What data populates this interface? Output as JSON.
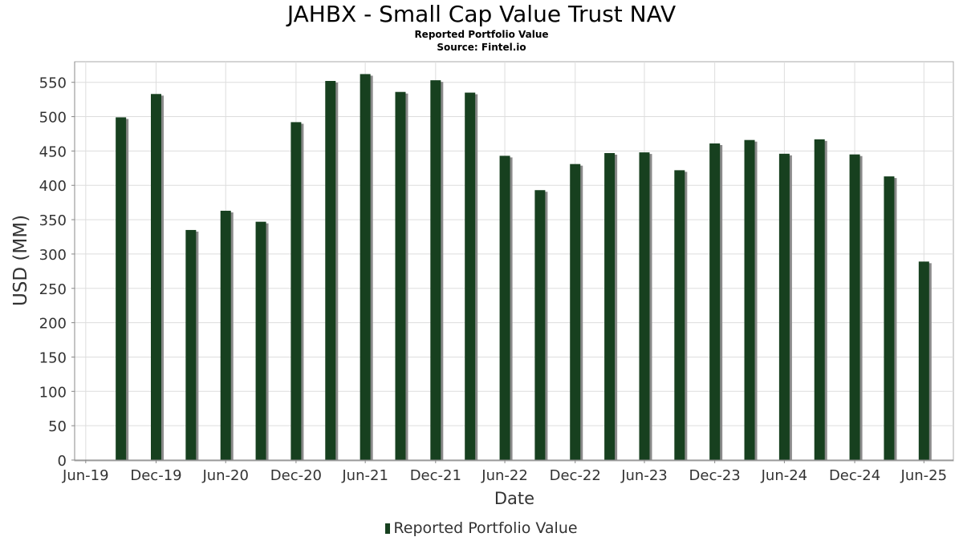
{
  "header": {
    "title": "JAHBX - Small Cap Value Trust NAV",
    "subtitle": "Reported Portfolio Value",
    "source": "Source: Fintel.io"
  },
  "legend": {
    "label": "Reported Portfolio Value"
  },
  "colors": {
    "bar": "#17401f",
    "shadow": "#8a8a8a",
    "grid": "#dddddd",
    "axis": "#888888"
  },
  "chart_data": {
    "type": "bar",
    "title": "JAHBX - Small Cap Value Trust NAV",
    "subtitle": "Reported Portfolio Value",
    "xlabel": "Date",
    "ylabel": "USD (MM)",
    "ylim": [
      0,
      580
    ],
    "yticks": [
      0,
      50,
      100,
      150,
      200,
      250,
      300,
      350,
      400,
      450,
      500,
      550
    ],
    "xlim": [
      "2019-06-01",
      "2025-09-15"
    ],
    "xticks": [
      {
        "label": "Jun-19",
        "date": "2019-06-30"
      },
      {
        "label": "Dec-19",
        "date": "2019-12-31"
      },
      {
        "label": "Jun-20",
        "date": "2020-06-30"
      },
      {
        "label": "Dec-20",
        "date": "2020-12-31"
      },
      {
        "label": "Jun-21",
        "date": "2021-06-30"
      },
      {
        "label": "Dec-21",
        "date": "2021-12-31"
      },
      {
        "label": "Jun-22",
        "date": "2022-06-30"
      },
      {
        "label": "Dec-22",
        "date": "2022-12-31"
      },
      {
        "label": "Jun-23",
        "date": "2023-06-30"
      },
      {
        "label": "Dec-23",
        "date": "2023-12-31"
      },
      {
        "label": "Jun-24",
        "date": "2024-06-30"
      },
      {
        "label": "Dec-24",
        "date": "2024-12-31"
      },
      {
        "label": "Jun-25",
        "date": "2025-06-30"
      }
    ],
    "grid": true,
    "legend_position": "bottom-center",
    "series": [
      {
        "name": "Reported Portfolio Value",
        "points": [
          {
            "date": "2019-09-30",
            "value": 499
          },
          {
            "date": "2019-12-31",
            "value": 533
          },
          {
            "date": "2020-03-31",
            "value": 335
          },
          {
            "date": "2020-06-30",
            "value": 363
          },
          {
            "date": "2020-09-30",
            "value": 347
          },
          {
            "date": "2020-12-31",
            "value": 492
          },
          {
            "date": "2021-03-31",
            "value": 552
          },
          {
            "date": "2021-06-30",
            "value": 562
          },
          {
            "date": "2021-09-30",
            "value": 536
          },
          {
            "date": "2021-12-31",
            "value": 553
          },
          {
            "date": "2022-03-31",
            "value": 535
          },
          {
            "date": "2022-06-30",
            "value": 443
          },
          {
            "date": "2022-09-30",
            "value": 393
          },
          {
            "date": "2022-12-31",
            "value": 431
          },
          {
            "date": "2023-03-31",
            "value": 447
          },
          {
            "date": "2023-06-30",
            "value": 448
          },
          {
            "date": "2023-09-30",
            "value": 422
          },
          {
            "date": "2023-12-31",
            "value": 461
          },
          {
            "date": "2024-03-31",
            "value": 466
          },
          {
            "date": "2024-06-30",
            "value": 446
          },
          {
            "date": "2024-09-30",
            "value": 467
          },
          {
            "date": "2024-12-31",
            "value": 445
          },
          {
            "date": "2025-03-31",
            "value": 413
          },
          {
            "date": "2025-06-30",
            "value": 289
          }
        ]
      }
    ]
  }
}
